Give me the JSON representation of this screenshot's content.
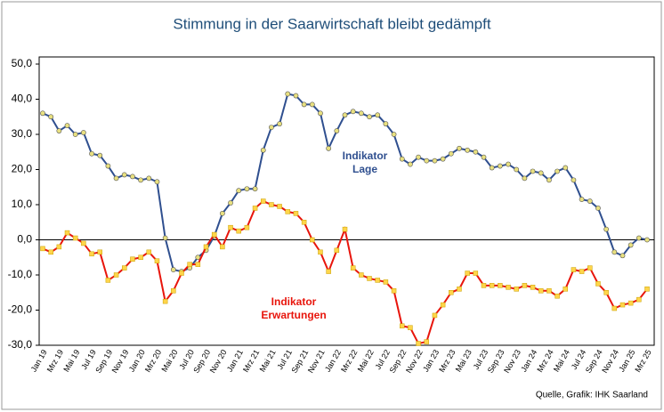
{
  "chart_data": {
    "type": "line",
    "title": "Stimmung in der Saarwirtschaft bleibt gedämpft",
    "source": "Quelle, Grafik: IHK Saarland",
    "categories": [
      "Jan 19",
      null,
      "Mrz 19",
      null,
      "Mai 19",
      null,
      "Jul 19",
      null,
      "Sep 19",
      null,
      "Nov 19",
      null,
      "Jan 20",
      null,
      "Mrz 20",
      null,
      "Mai 20",
      null,
      "Jul 20",
      null,
      "Sep 20",
      null,
      "Nov 20",
      null,
      "Jan 21",
      null,
      "Mrz 21",
      null,
      "Mai 21",
      null,
      "Jul 21",
      null,
      "Sep 21",
      null,
      "Nov 21",
      null,
      "Jan 22",
      null,
      "Mrz 22",
      null,
      "Mai 22",
      null,
      "Jul 22",
      null,
      "Sep 22",
      null,
      "Nov 22",
      null,
      "Jan 23",
      null,
      "Mrz 23",
      null,
      "Mai 23",
      null,
      "Jul 23",
      null,
      "Sep 23",
      null,
      "Nov 23",
      null,
      "Jan 24",
      null,
      "Mrz 24",
      null,
      "Mai 24",
      null,
      "Jul 24",
      null,
      "Sep 24",
      null,
      "Nov 24",
      null,
      "Jan 25",
      null,
      "Mrz 25"
    ],
    "series": [
      {
        "name": "Indikator Lage",
        "color": "#2f4f8f",
        "marker": "circle",
        "values": [
          36,
          35,
          31,
          32.5,
          30,
          30.5,
          24.5,
          24,
          21,
          17.5,
          18.5,
          18,
          17,
          17.5,
          16.5,
          0.5,
          -8.5,
          -9,
          -8,
          -5,
          -3,
          1,
          7.5,
          10.5,
          14,
          14.5,
          14.5,
          25.5,
          32,
          33,
          41.5,
          41,
          38.5,
          38.5,
          36,
          26,
          31,
          35.5,
          36.5,
          36,
          35,
          35.5,
          33,
          30,
          23,
          21.5,
          23.5,
          22.5,
          22.5,
          23,
          24.5,
          26,
          25.5,
          25,
          23.5,
          20.5,
          21,
          21.5,
          20,
          17.5,
          19.5,
          19,
          17,
          19.5,
          20.5,
          17,
          11.5,
          11,
          9,
          3,
          -3.5,
          -4.5,
          -1.5,
          0.5,
          0
        ]
      },
      {
        "name": "Indikator Erwartungen",
        "color": "#e8150c",
        "marker": "square",
        "values": [
          -2.5,
          -3.5,
          -2,
          2,
          0.5,
          -1,
          -4,
          -3.5,
          -11.5,
          -10,
          -8,
          -5.5,
          -5,
          -3.5,
          -6,
          -17.5,
          -14.5,
          -9.5,
          -7,
          -7,
          -2,
          1.5,
          -2,
          3.5,
          2.5,
          3.5,
          9,
          11,
          10,
          9.5,
          8,
          7.5,
          5,
          0,
          -3.5,
          -9,
          -3,
          3,
          -8,
          -10,
          -11,
          -11.5,
          -12,
          -14.5,
          -24.5,
          -25,
          -29.5,
          -29,
          -21.5,
          -18.5,
          -15,
          -14,
          -9.5,
          -9.5,
          -13,
          -13,
          -13,
          -13.5,
          -14,
          -13,
          -13.5,
          -14.5,
          -14.5,
          -16,
          -14,
          -8.5,
          -9,
          -8,
          -12.5,
          -15,
          -19.5,
          -18.5,
          -18,
          -17,
          -14
        ]
      }
    ],
    "annotations": [
      {
        "lines": [
          "Indikator",
          "Lage"
        ],
        "color": "#2f4f8f"
      },
      {
        "lines": [
          "Indikator",
          "Erwartungen"
        ],
        "color": "#e8150c"
      }
    ],
    "ylim": [
      -30,
      50
    ],
    "yticks": [
      {
        "value": -30,
        "label": "-30,0"
      },
      {
        "value": -20,
        "label": "-20,0"
      },
      {
        "value": -10,
        "label": "-10,0"
      },
      {
        "value": 0,
        "label": "0,0"
      },
      {
        "value": 10,
        "label": "10,0"
      },
      {
        "value": 20,
        "label": "20,0"
      },
      {
        "value": 30,
        "label": "30,0"
      },
      {
        "value": 40,
        "label": "40,0"
      },
      {
        "value": 50,
        "label": "50,0"
      }
    ],
    "grid": false
  }
}
